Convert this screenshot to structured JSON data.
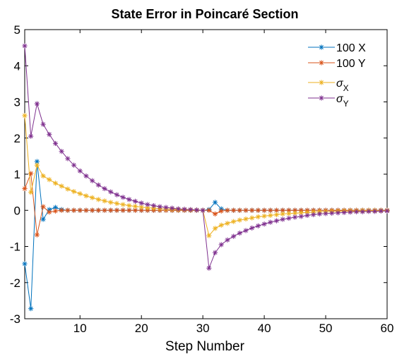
{
  "chart_data": {
    "type": "line",
    "title": "State Error in Poincaré Section",
    "xlabel": "Step Number",
    "ylabel": "",
    "xlim": [
      1,
      60
    ],
    "ylim": [
      -3,
      5
    ],
    "xticks": [
      10,
      20,
      30,
      40,
      50,
      60
    ],
    "yticks": [
      -3,
      -2,
      -1,
      0,
      1,
      2,
      3,
      4,
      5
    ],
    "grid": false,
    "legend_position": "top-right",
    "marker": "asterisk",
    "series": [
      {
        "name": "100 X",
        "legend_main": "100 X",
        "legend_sub": "",
        "color": "#0072BD",
        "x": [
          1,
          2,
          3,
          4,
          5,
          6,
          7,
          8,
          9,
          10,
          11,
          12,
          13,
          14,
          15,
          16,
          17,
          18,
          19,
          20,
          21,
          22,
          23,
          24,
          25,
          26,
          27,
          28,
          29,
          30,
          31,
          32,
          33,
          34,
          35,
          36,
          37,
          38,
          39,
          40,
          41,
          42,
          43,
          44,
          45,
          46,
          47,
          48,
          49,
          50,
          51,
          52,
          53,
          54,
          55,
          56,
          57,
          58,
          59,
          60
        ],
        "values": [
          -1.48,
          -2.72,
          1.35,
          -0.25,
          0.02,
          0.08,
          0.02,
          0,
          0,
          0,
          0,
          0,
          0,
          0,
          0,
          0,
          0,
          0,
          0,
          0,
          0,
          0,
          0,
          0,
          0,
          0,
          0,
          0,
          0,
          0,
          0.02,
          0.22,
          0.04,
          0,
          0,
          0,
          0,
          0,
          0,
          0,
          0,
          0,
          0,
          0,
          0,
          0,
          0,
          0,
          0,
          0,
          0,
          0,
          0,
          0,
          0,
          0,
          0,
          0,
          0,
          0
        ]
      },
      {
        "name": "100 Y",
        "legend_main": "100 Y",
        "legend_sub": "",
        "color": "#D95319",
        "x": [
          1,
          2,
          3,
          4,
          5,
          6,
          7,
          8,
          9,
          10,
          11,
          12,
          13,
          14,
          15,
          16,
          17,
          18,
          19,
          20,
          21,
          22,
          23,
          24,
          25,
          26,
          27,
          28,
          29,
          30,
          31,
          32,
          33,
          34,
          35,
          36,
          37,
          38,
          39,
          40,
          41,
          42,
          43,
          44,
          45,
          46,
          47,
          48,
          49,
          50,
          51,
          52,
          53,
          54,
          55,
          56,
          57,
          58,
          59,
          60
        ],
        "values": [
          0.6,
          1.02,
          -0.68,
          0.1,
          -0.05,
          -0.02,
          0,
          0,
          0,
          0,
          0,
          0,
          0,
          0,
          0,
          0,
          0,
          0,
          0,
          0,
          0,
          0,
          0,
          0,
          0,
          0,
          0,
          0,
          0,
          0,
          0,
          -0.1,
          -0.02,
          0,
          0,
          0,
          0,
          0,
          0,
          0,
          0,
          0,
          0,
          0,
          0,
          0,
          0,
          0,
          0,
          0,
          0,
          0,
          0,
          0,
          0,
          0,
          0,
          0,
          0,
          0
        ]
      },
      {
        "name": "σX",
        "legend_main": "σ",
        "legend_sub": "X",
        "color": "#EDB120",
        "x": [
          1,
          2,
          3,
          4,
          5,
          6,
          7,
          8,
          9,
          10,
          11,
          12,
          13,
          14,
          15,
          16,
          17,
          18,
          19,
          20,
          21,
          22,
          23,
          24,
          25,
          26,
          27,
          28,
          29,
          30,
          31,
          32,
          33,
          34,
          35,
          36,
          37,
          38,
          39,
          40,
          41,
          42,
          43,
          44,
          45,
          46,
          47,
          48,
          49,
          50,
          51,
          52,
          53,
          54,
          55,
          56,
          57,
          58,
          59,
          60
        ],
        "values": [
          2.62,
          0.5,
          1.25,
          0.95,
          0.85,
          0.75,
          0.67,
          0.59,
          0.52,
          0.46,
          0.4,
          0.35,
          0.3,
          0.26,
          0.22,
          0.19,
          0.16,
          0.13,
          0.11,
          0.09,
          0.07,
          0.06,
          0.05,
          0.04,
          0.03,
          0.02,
          0.02,
          0.01,
          0.01,
          0,
          -0.7,
          -0.5,
          -0.41,
          -0.36,
          -0.31,
          -0.27,
          -0.24,
          -0.21,
          -0.18,
          -0.16,
          -0.14,
          -0.12,
          -0.1,
          -0.09,
          -0.08,
          -0.07,
          -0.06,
          -0.05,
          -0.04,
          -0.04,
          -0.03,
          -0.03,
          -0.02,
          -0.02,
          -0.02,
          -0.01,
          -0.01,
          -0.01,
          -0.01,
          -0.01
        ]
      },
      {
        "name": "σY",
        "legend_main": "σ",
        "legend_sub": "Y",
        "color": "#7E2F8E",
        "x": [
          1,
          2,
          3,
          4,
          5,
          6,
          7,
          8,
          9,
          10,
          11,
          12,
          13,
          14,
          15,
          16,
          17,
          18,
          19,
          20,
          21,
          22,
          23,
          24,
          25,
          26,
          27,
          28,
          29,
          30,
          31,
          32,
          33,
          34,
          35,
          36,
          37,
          38,
          39,
          40,
          41,
          42,
          43,
          44,
          45,
          46,
          47,
          48,
          49,
          50,
          51,
          52,
          53,
          54,
          55,
          56,
          57,
          58,
          59,
          60
        ],
        "values": [
          4.55,
          2.05,
          2.95,
          2.38,
          2.1,
          1.85,
          1.63,
          1.43,
          1.25,
          1.09,
          0.95,
          0.82,
          0.7,
          0.6,
          0.51,
          0.43,
          0.36,
          0.3,
          0.25,
          0.2,
          0.16,
          0.13,
          0.1,
          0.08,
          0.06,
          0.04,
          0.03,
          0.02,
          0.01,
          0,
          -1.6,
          -1.17,
          -0.95,
          -0.82,
          -0.72,
          -0.63,
          -0.56,
          -0.49,
          -0.43,
          -0.38,
          -0.33,
          -0.29,
          -0.25,
          -0.22,
          -0.19,
          -0.17,
          -0.14,
          -0.12,
          -0.1,
          -0.09,
          -0.08,
          -0.07,
          -0.06,
          -0.05,
          -0.04,
          -0.04,
          -0.03,
          -0.03,
          -0.02,
          -0.02
        ]
      }
    ]
  }
}
